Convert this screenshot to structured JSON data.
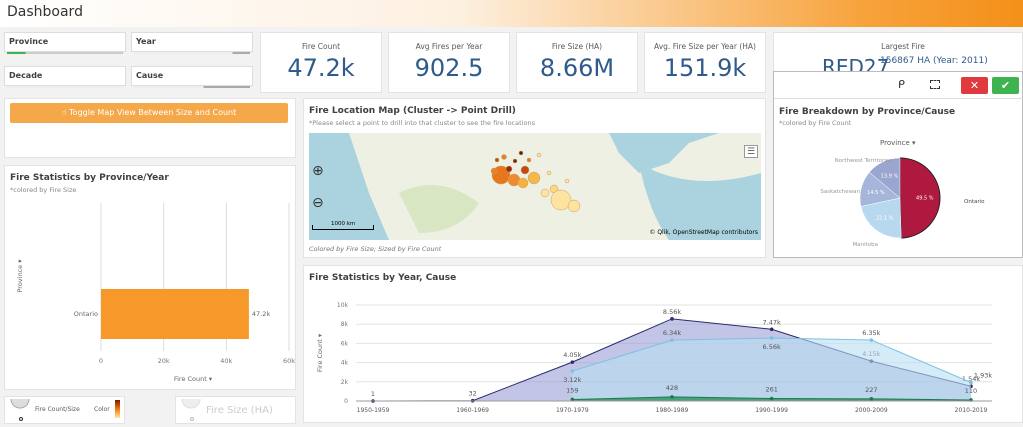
{
  "header": {
    "title": "Dashboard"
  },
  "filters": [
    {
      "label": "Province"
    },
    {
      "label": "Year"
    },
    {
      "label": "Decade"
    },
    {
      "label": "Cause"
    }
  ],
  "kpis": [
    {
      "title": "Fire Count",
      "value": "47.2k"
    },
    {
      "title": "Avg Fires per Year",
      "value": "902.5"
    },
    {
      "title": "Fire Size (HA)",
      "value": "8.66M"
    },
    {
      "title": "Avg. Fire Size per Year (HA)",
      "value": "151.9k"
    }
  ],
  "largest_fire": {
    "title": "Largest Fire",
    "id": "RED27",
    "detail": "156867 HA (Year: 2011)"
  },
  "toggle_button": {
    "label": "Toggle Map View Between Size and Count",
    "icon": "touch-icon"
  },
  "map": {
    "title": "Fire Location Map (Cluster -> Point Drill)",
    "subtitle": "*Please select a point to drill into that cluster to see the fire locations",
    "scale": "1000 km",
    "attribution": "© Qlik, OpenStreetMap contributors",
    "footer": "Colored by Fire Size; Sized by Fire Count"
  },
  "selection_toolbar": {
    "icons": [
      "lasso-icon",
      "select-options-icon",
      "cancel-icon",
      "confirm-icon"
    ],
    "cancel_color": "#e0393e",
    "confirm_color": "#3fb34f"
  },
  "legend": {
    "size_label": "Fire Count/Size",
    "color_label": "Color",
    "disabled_label": "Fire Size (HA)"
  },
  "colors": {
    "accent": "#f7a23a",
    "kpi": "#2e5b8c",
    "bar": "#f7982a"
  },
  "chart_data": [
    {
      "type": "bar",
      "title": "Fire Statistics by Province/Year",
      "subtitle": "*colored by Fire Size",
      "categories": [
        "Ontario"
      ],
      "values": [
        47200
      ],
      "data_labels": [
        "47.2k"
      ],
      "xlabel": "Fire Count",
      "ylabel": "Province",
      "xlim": [
        0,
        60000
      ],
      "ticks": [
        "0",
        "20k",
        "40k",
        "60k"
      ],
      "orientation": "horizontal"
    },
    {
      "type": "pie",
      "title": "Fire Breakdown by Province/Cause",
      "subtitle": "*colored by Fire Count",
      "dimension": "Province",
      "slices": [
        {
          "label": "Ontario",
          "value": 49.5,
          "text": "49.5 %",
          "color": "#b0193f"
        },
        {
          "label": "Manitoba",
          "value": 22.1,
          "text": "22.1 %",
          "color": "#b8d8f0"
        },
        {
          "label": "Saskatchewan",
          "value": 14.5,
          "text": "14.5 %",
          "color": "#a5b6da"
        },
        {
          "label": "Northwest Territories",
          "value": 13.9,
          "text": "13.9 %",
          "color": "#9aa6cf"
        }
      ]
    },
    {
      "type": "area",
      "title": "Fire Statistics by Year, Cause",
      "ylabel": "Fire Count",
      "ylim": [
        0,
        10000
      ],
      "yticks": [
        "0",
        "2k",
        "4k",
        "6k",
        "8k",
        "10k"
      ],
      "categories": [
        "1950-1959",
        "1960-1969",
        "1970-1979",
        "1980-1989",
        "1990-1999",
        "2000-2009",
        "2010-2019"
      ],
      "series": [
        {
          "values": [
            1,
            32,
            4050,
            8560,
            7470,
            4150,
            1540
          ],
          "labels": [
            "1",
            "32",
            "4.05k",
            "8.56k",
            "7.47k",
            "4.15k",
            "1.54k"
          ],
          "color": "#2c2a6e",
          "fill": "#9a9fd6"
        },
        {
          "values": [
            null,
            null,
            3120,
            6340,
            6560,
            6350,
            1930
          ],
          "labels": [
            "",
            "",
            "3.12k",
            "6.34k",
            "6.56k",
            "6.35k",
            "1.93k"
          ],
          "color": "#7cc1e4",
          "fill": "#b9def2"
        },
        {
          "values": [
            null,
            null,
            159,
            428,
            261,
            227,
            110
          ],
          "labels": [
            "",
            "",
            "159",
            "428",
            "261",
            "227",
            "110"
          ],
          "color": "#1d7a4f",
          "fill": "#3b9a6a"
        }
      ]
    }
  ]
}
